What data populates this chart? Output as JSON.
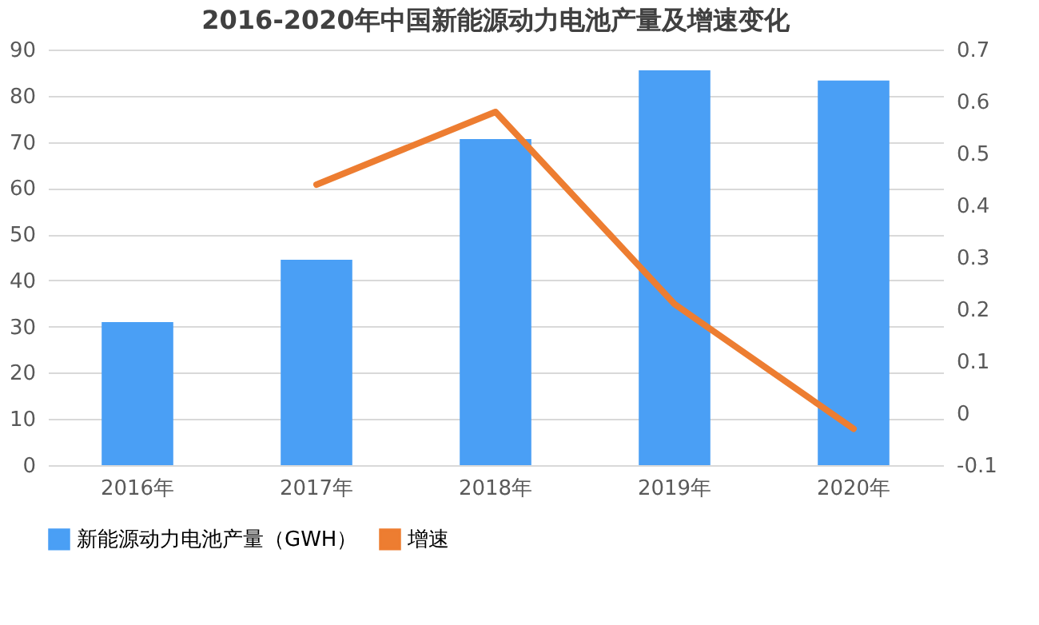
{
  "chart_data": {
    "type": "bar",
    "title": "2016-2020年中国新能源动力电池产量及增速变化",
    "categories": [
      "2016年",
      "2017年",
      "2018年",
      "2019年",
      "2020年"
    ],
    "series": [
      {
        "name": "新能源动力电池产量（GWH）",
        "color": "#4a9ff5",
        "values": [
          31,
          44.5,
          70.6,
          85.5,
          83.3
        ]
      },
      {
        "name": "增速",
        "type": "line",
        "axis": "y2",
        "color": "#ed7d31",
        "values": [
          null,
          0.44,
          0.58,
          0.21,
          -0.03
        ]
      }
    ],
    "ylim": [
      0,
      90
    ],
    "yticks": [
      0,
      10,
      20,
      30,
      40,
      50,
      60,
      70,
      80,
      90
    ],
    "y2lim": [
      -0.1,
      0.7
    ],
    "y2ticks": [
      -0.1,
      0,
      0.1,
      0.2,
      0.3,
      0.4,
      0.5,
      0.6,
      0.7
    ],
    "grid": "y",
    "legend": "bottom",
    "line_style": "solid",
    "marker": "none"
  }
}
